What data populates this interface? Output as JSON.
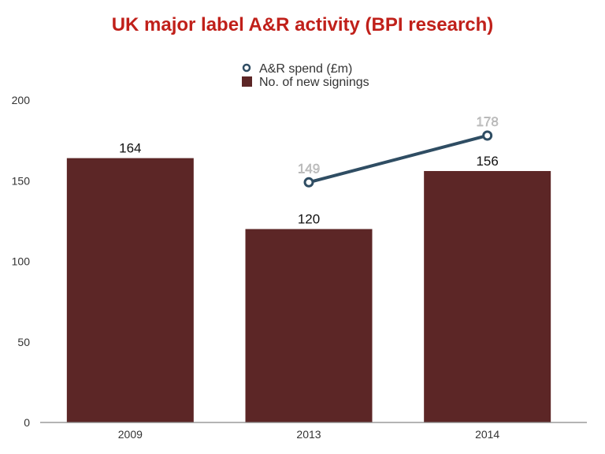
{
  "chart_data": {
    "type": "bar",
    "title": "UK major label A&R activity (BPI research)",
    "categories": [
      "2009",
      "2013",
      "2014"
    ],
    "ylim": [
      0,
      200
    ],
    "yticks": [
      0,
      50,
      100,
      150,
      200
    ],
    "grid": false,
    "legend_position": "top-center",
    "series": [
      {
        "name": "A&R spend (£m)",
        "kind": "line",
        "values": [
          null,
          149,
          178
        ],
        "color": "#2f4d63"
      },
      {
        "name": "No. of new signings",
        "kind": "bar",
        "values": [
          164,
          120,
          156
        ],
        "color": "#5c2626"
      }
    ]
  }
}
